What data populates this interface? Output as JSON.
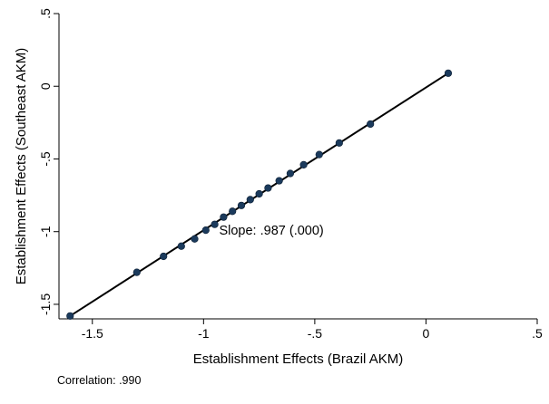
{
  "chart_data": {
    "type": "scatter",
    "title": "",
    "xlabel": "Establishment Effects (Brazil AKM)",
    "ylabel": "Establishment Effects (Southeast AKM)",
    "xlim": [
      -1.65,
      0.5
    ],
    "ylim": [
      -1.6,
      0.5
    ],
    "x_ticks": [
      -1.5,
      -1,
      -0.5,
      0,
      0.5
    ],
    "x_tick_labels": [
      "-1.5",
      "-1",
      "-.5",
      "0",
      ".5"
    ],
    "y_ticks": [
      -1.5,
      -1,
      -0.5,
      0,
      0.5
    ],
    "y_tick_labels": [
      "-1.5",
      "-1",
      "-.5",
      "0",
      ".5"
    ],
    "grid": false,
    "legend": "none",
    "series": [
      {
        "marker_color": "#1b3a5c",
        "points": [
          {
            "x": -1.6,
            "y": -1.58
          },
          {
            "x": -1.3,
            "y": -1.28
          },
          {
            "x": -1.18,
            "y": -1.17
          },
          {
            "x": -1.1,
            "y": -1.1
          },
          {
            "x": -1.04,
            "y": -1.05
          },
          {
            "x": -0.99,
            "y": -0.99
          },
          {
            "x": -0.95,
            "y": -0.95
          },
          {
            "x": -0.91,
            "y": -0.9
          },
          {
            "x": -0.87,
            "y": -0.86
          },
          {
            "x": -0.83,
            "y": -0.82
          },
          {
            "x": -0.79,
            "y": -0.78
          },
          {
            "x": -0.75,
            "y": -0.74
          },
          {
            "x": -0.71,
            "y": -0.7
          },
          {
            "x": -0.66,
            "y": -0.65
          },
          {
            "x": -0.61,
            "y": -0.6
          },
          {
            "x": -0.55,
            "y": -0.54
          },
          {
            "x": -0.48,
            "y": -0.47
          },
          {
            "x": -0.39,
            "y": -0.39
          },
          {
            "x": -0.25,
            "y": -0.26
          },
          {
            "x": 0.1,
            "y": 0.09
          }
        ]
      }
    ],
    "fit_line": {
      "x1": -1.6,
      "y1": -1.58,
      "x2": 0.1,
      "y2": 0.09,
      "color": "#000000"
    },
    "annotation": {
      "text": "Slope: .987 (.000)",
      "x": -0.93,
      "y": -1.02
    },
    "note": "Correlation: .990"
  }
}
